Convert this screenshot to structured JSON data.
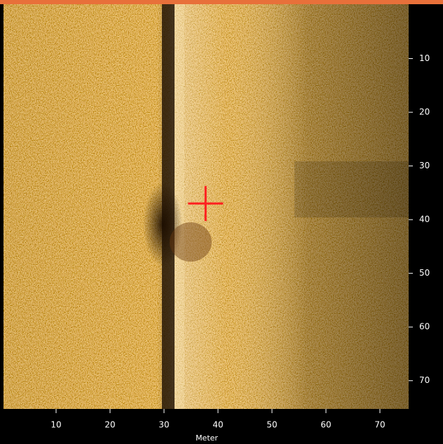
{
  "chart_data": {
    "type": "sonar",
    "xlabel": "Meter",
    "xlim": [
      0,
      75
    ],
    "ylim": [
      0,
      75
    ],
    "xticks": [
      10,
      20,
      30,
      40,
      50,
      60,
      70
    ],
    "yticks": [
      10,
      20,
      30,
      40,
      50,
      60,
      70
    ],
    "marker": {
      "x": 37.7,
      "y": 37,
      "color": "#ff2020"
    }
  }
}
